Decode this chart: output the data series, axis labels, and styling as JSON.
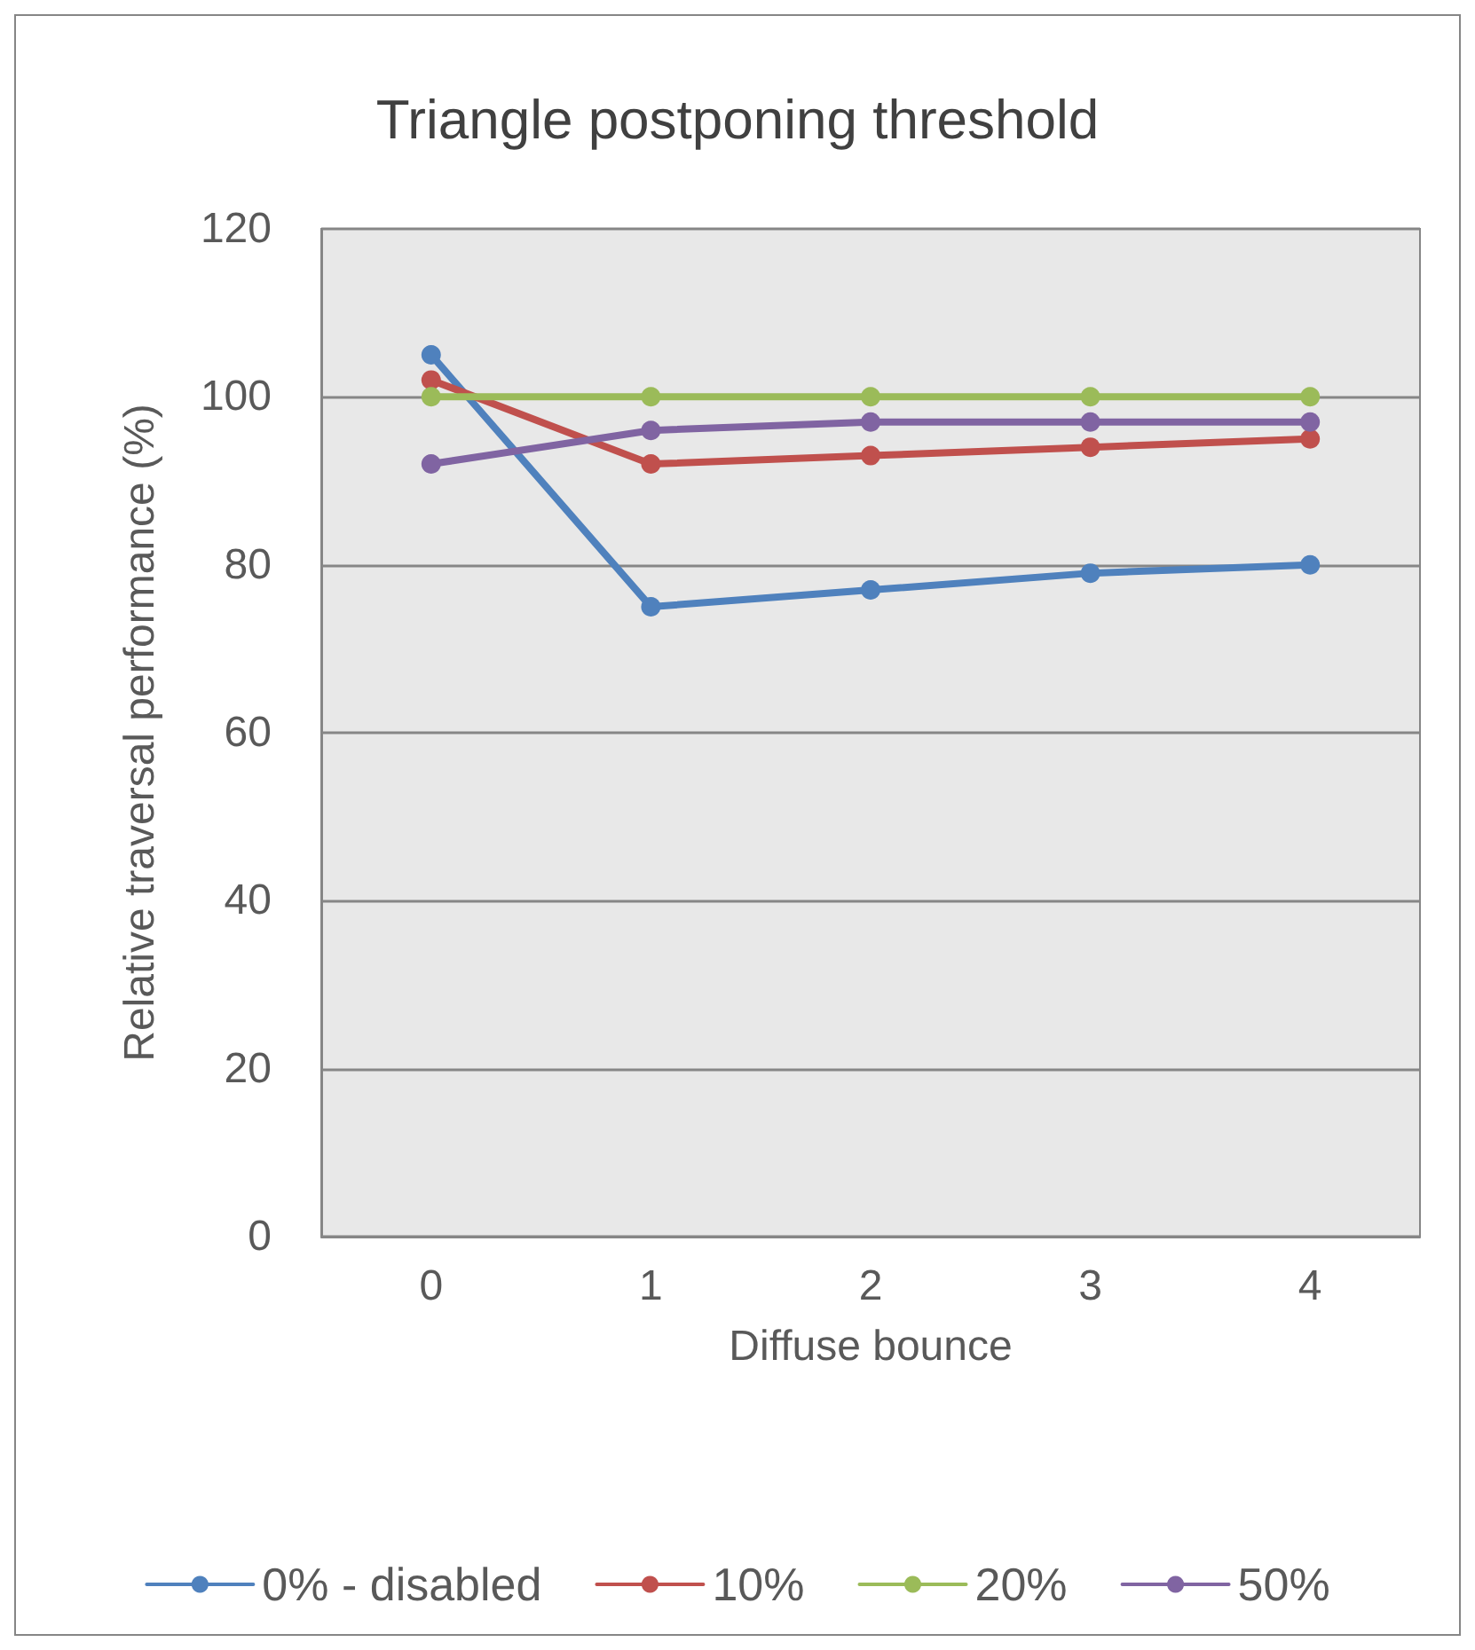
{
  "chart_data": {
    "type": "line",
    "title": "Triangle postponing threshold",
    "xlabel": "Diffuse bounce",
    "ylabel": "Relative traversal performance (%)",
    "categories": [
      "0",
      "1",
      "2",
      "3",
      "4"
    ],
    "series": [
      {
        "name": "0% - disabled",
        "color": "#4f81bd",
        "values": [
          105,
          75,
          77,
          79,
          80
        ]
      },
      {
        "name": "10%",
        "color": "#c0504d",
        "values": [
          102,
          92,
          93,
          94,
          95
        ]
      },
      {
        "name": "20%",
        "color": "#9bbb59",
        "values": [
          100,
          100,
          100,
          100,
          100
        ]
      },
      {
        "name": "50%",
        "color": "#8064a2",
        "values": [
          92,
          96,
          97,
          97,
          97
        ]
      }
    ],
    "ylim": [
      0,
      120
    ],
    "yticks": [
      0,
      20,
      40,
      60,
      80,
      100,
      120
    ],
    "grid": "y",
    "legend": "bottom",
    "marker": "circle",
    "line_style": "solid"
  }
}
